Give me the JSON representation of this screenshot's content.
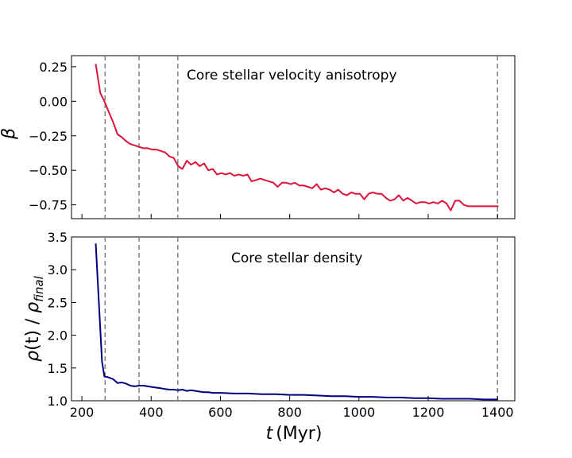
{
  "chart_data": [
    {
      "type": "line",
      "annotation": "Core stellar velocity anisotropy",
      "ylabel": "β",
      "xlim": [
        170,
        1450
      ],
      "ylim": [
        -0.85,
        0.33
      ],
      "yticks": [
        0.25,
        0.0,
        -0.25,
        -0.5,
        -0.75
      ],
      "ytick_labels": [
        "0.25",
        "0.00",
        "−0.25",
        "−0.50",
        "−0.75"
      ],
      "series": [
        {
          "name": "beta",
          "color": "#dc143c",
          "x": [
            240,
            253,
            265,
            278,
            290,
            303,
            315,
            328,
            340,
            353,
            365,
            378,
            390,
            403,
            415,
            428,
            440,
            453,
            465,
            478,
            490,
            503,
            515,
            528,
            540,
            553,
            565,
            578,
            590,
            603,
            615,
            628,
            640,
            653,
            665,
            678,
            690,
            703,
            715,
            728,
            740,
            753,
            765,
            778,
            790,
            803,
            815,
            828,
            840,
            853,
            865,
            878,
            890,
            903,
            915,
            928,
            940,
            953,
            965,
            978,
            990,
            1003,
            1015,
            1028,
            1040,
            1053,
            1065,
            1078,
            1090,
            1103,
            1115,
            1128,
            1140,
            1153,
            1165,
            1178,
            1190,
            1203,
            1215,
            1228,
            1240,
            1253,
            1265,
            1278,
            1290,
            1303,
            1315,
            1328,
            1340,
            1353,
            1365,
            1378,
            1390,
            1403
          ],
          "y": [
            0.27,
            0.06,
            0.0,
            -0.08,
            -0.15,
            -0.24,
            -0.26,
            -0.29,
            -0.31,
            -0.32,
            -0.33,
            -0.34,
            -0.34,
            -0.35,
            -0.35,
            -0.36,
            -0.37,
            -0.4,
            -0.41,
            -0.47,
            -0.49,
            -0.43,
            -0.46,
            -0.44,
            -0.47,
            -0.45,
            -0.5,
            -0.49,
            -0.53,
            -0.52,
            -0.53,
            -0.52,
            -0.54,
            -0.53,
            -0.54,
            -0.53,
            -0.58,
            -0.57,
            -0.56,
            -0.57,
            -0.58,
            -0.59,
            -0.62,
            -0.59,
            -0.59,
            -0.6,
            -0.59,
            -0.61,
            -0.61,
            -0.62,
            -0.63,
            -0.6,
            -0.64,
            -0.63,
            -0.64,
            -0.66,
            -0.64,
            -0.67,
            -0.68,
            -0.66,
            -0.67,
            -0.67,
            -0.71,
            -0.67,
            -0.66,
            -0.67,
            -0.67,
            -0.7,
            -0.72,
            -0.71,
            -0.68,
            -0.72,
            -0.7,
            -0.72,
            -0.74,
            -0.73,
            -0.73,
            -0.74,
            -0.73,
            -0.74,
            -0.72,
            -0.74,
            -0.79,
            -0.72,
            -0.72,
            -0.75,
            -0.76,
            -0.76,
            -0.76,
            -0.76,
            -0.76,
            -0.76,
            -0.76,
            -0.76
          ]
        }
      ]
    },
    {
      "type": "line",
      "annotation": "Core stellar density",
      "ylabel": "ρ(t) / ρ_final",
      "xlabel": "t (Myr)",
      "xlim": [
        170,
        1450
      ],
      "ylim": [
        1.0,
        3.5
      ],
      "yticks": [
        1.0,
        1.5,
        2.0,
        2.5,
        3.0,
        3.5
      ],
      "ytick_labels": [
        "1.0",
        "1.5",
        "2.0",
        "2.5",
        "3.0",
        "3.5"
      ],
      "series": [
        {
          "name": "density",
          "color": "#000080",
          "x": [
            240,
            250,
            258,
            265,
            275,
            290,
            303,
            315,
            328,
            340,
            353,
            365,
            378,
            390,
            403,
            415,
            428,
            440,
            453,
            465,
            478,
            490,
            503,
            515,
            528,
            540,
            553,
            565,
            578,
            590,
            603,
            640,
            680,
            720,
            760,
            800,
            840,
            880,
            920,
            960,
            1000,
            1040,
            1080,
            1120,
            1160,
            1200,
            1240,
            1280,
            1320,
            1360,
            1400
          ],
          "y": [
            3.4,
            2.4,
            1.6,
            1.37,
            1.36,
            1.33,
            1.27,
            1.28,
            1.26,
            1.23,
            1.22,
            1.23,
            1.23,
            1.22,
            1.21,
            1.2,
            1.19,
            1.18,
            1.17,
            1.17,
            1.16,
            1.17,
            1.15,
            1.16,
            1.15,
            1.14,
            1.13,
            1.13,
            1.12,
            1.12,
            1.12,
            1.11,
            1.11,
            1.1,
            1.1,
            1.09,
            1.09,
            1.08,
            1.07,
            1.07,
            1.06,
            1.06,
            1.05,
            1.05,
            1.04,
            1.04,
            1.03,
            1.03,
            1.03,
            1.02,
            1.02
          ]
        }
      ]
    }
  ],
  "vlines": [
    267,
    365,
    477,
    1400
  ],
  "xticks": [
    200,
    400,
    600,
    800,
    1000,
    1200,
    1400
  ],
  "xtick_labels": [
    "200",
    "400",
    "600",
    "800",
    "1000",
    "1200",
    "1400"
  ],
  "labels": {
    "xlabel_t": "t",
    "xlabel_unit": "(Myr)",
    "ylabel_top": "β",
    "ylabel_bottom_rho1": "ρ",
    "ylabel_bottom_t": "(t) / ",
    "ylabel_bottom_rho2": "ρ",
    "ylabel_bottom_sub": "final"
  }
}
